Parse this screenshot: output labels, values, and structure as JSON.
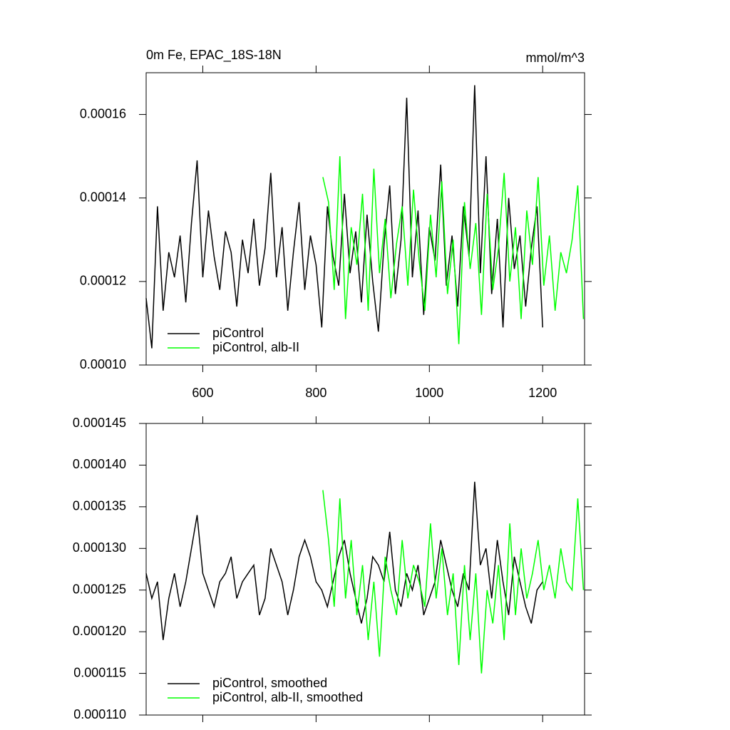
{
  "chart_data": [
    {
      "type": "line",
      "title": "0m Fe, EPAC_18S-18N",
      "units": "mmol/m^3",
      "xlim": [
        500,
        1274
      ],
      "xticks": [
        600,
        800,
        1000,
        1200
      ],
      "ylim": [
        0.0001,
        0.00017
      ],
      "yticks": [
        {
          "value": 0.0001,
          "label": "0.00010"
        },
        0.00012,
        0.00014,
        0.00016
      ],
      "legend": "lower left",
      "series": [
        {
          "name": "piControl",
          "color": "#000000",
          "x": [
            500,
            510,
            520,
            530,
            540,
            550,
            560,
            570,
            580,
            590,
            600,
            610,
            620,
            630,
            640,
            650,
            660,
            670,
            680,
            690,
            700,
            710,
            720,
            730,
            740,
            750,
            760,
            770,
            780,
            790,
            800,
            810,
            820,
            830,
            840,
            850,
            860,
            870,
            880,
            890,
            900,
            910,
            920,
            930,
            940,
            950,
            960,
            970,
            980,
            990,
            1000,
            1010,
            1020,
            1030,
            1040,
            1050,
            1060,
            1070,
            1080,
            1090,
            1100,
            1110,
            1120,
            1130,
            1140,
            1150,
            1160,
            1170,
            1180,
            1190,
            1200
          ],
          "values": [
            0.000116,
            0.000104,
            0.000138,
            0.000113,
            0.000127,
            0.000121,
            0.000131,
            0.000115,
            0.000134,
            0.000149,
            0.000121,
            0.000137,
            0.000126,
            0.000118,
            0.000132,
            0.000127,
            0.000114,
            0.00013,
            0.000122,
            0.000135,
            0.000119,
            0.000128,
            0.000146,
            0.000121,
            0.000133,
            0.000113,
            0.000127,
            0.000139,
            0.000118,
            0.000131,
            0.000124,
            0.000109,
            0.000138,
            0.000126,
            0.000119,
            0.000141,
            0.000122,
            0.000132,
            0.000115,
            0.000136,
            0.00012,
            0.000108,
            0.000129,
            0.000143,
            0.000117,
            0.00013,
            0.000164,
            0.000121,
            0.000137,
            0.000112,
            0.000133,
            0.000125,
            0.000148,
            0.000119,
            0.000131,
            0.000114,
            0.000138,
            0.000126,
            0.000167,
            0.000122,
            0.00015,
            0.000117,
            0.000135,
            0.000109,
            0.00014,
            0.000123,
            0.000131,
            0.000114,
            0.000128,
            0.000138,
            0.000109
          ]
        },
        {
          "name": "piControl, alb-II",
          "color": "#00ff00",
          "x": [
            812,
            822,
            832,
            842,
            852,
            862,
            872,
            882,
            892,
            902,
            912,
            922,
            932,
            942,
            952,
            962,
            972,
            982,
            992,
            1002,
            1012,
            1022,
            1032,
            1042,
            1052,
            1062,
            1072,
            1082,
            1092,
            1102,
            1112,
            1122,
            1132,
            1142,
            1152,
            1162,
            1172,
            1182,
            1192,
            1202,
            1212,
            1222,
            1232,
            1242,
            1252,
            1262,
            1272
          ],
          "values": [
            0.000145,
            0.000139,
            0.000118,
            0.00015,
            0.000111,
            0.000133,
            0.000124,
            0.000141,
            0.000113,
            0.000147,
            0.000122,
            0.000135,
            0.000116,
            0.000129,
            0.000138,
            0.000119,
            0.000142,
            0.000125,
            0.000113,
            0.000136,
            0.000121,
            0.000144,
            0.000117,
            0.00013,
            0.000105,
            0.000139,
            0.000123,
            0.000134,
            0.000112,
            0.000141,
            0.000118,
            0.000128,
            0.000146,
            0.00012,
            0.000133,
            0.000111,
            0.000137,
            0.000124,
            0.000145,
            0.000119,
            0.000131,
            0.000113,
            0.000127,
            0.000122,
            0.00013,
            0.000143,
            0.000111
          ]
        }
      ]
    },
    {
      "type": "line",
      "xlim": [
        500,
        1274
      ],
      "xticks": [
        600,
        800,
        1000,
        1200
      ],
      "xtick_labels": false,
      "ylim": [
        0.00011,
        0.000145
      ],
      "yticks": [
        {
          "value": 0.00011,
          "label": "0.000110"
        },
        {
          "value": 0.000115,
          "label": "0.000115"
        },
        {
          "value": 0.00012,
          "label": "0.000120"
        },
        {
          "value": 0.000125,
          "label": "0.000125"
        },
        {
          "value": 0.00013,
          "label": "0.000130"
        },
        {
          "value": 0.000135,
          "label": "0.000135"
        },
        {
          "value": 0.00014,
          "label": "0.000140"
        },
        {
          "value": 0.000145,
          "label": "0.000145"
        }
      ],
      "legend": "lower left",
      "series": [
        {
          "name": "piControl, smoothed",
          "color": "#000000",
          "x": [
            500,
            510,
            520,
            530,
            540,
            550,
            560,
            570,
            580,
            590,
            600,
            610,
            620,
            630,
            640,
            650,
            660,
            670,
            680,
            690,
            700,
            710,
            720,
            730,
            740,
            750,
            760,
            770,
            780,
            790,
            800,
            810,
            820,
            830,
            840,
            850,
            860,
            870,
            880,
            890,
            900,
            910,
            920,
            930,
            940,
            950,
            960,
            970,
            980,
            990,
            1000,
            1010,
            1020,
            1030,
            1040,
            1050,
            1060,
            1070,
            1080,
            1090,
            1100,
            1110,
            1120,
            1130,
            1140,
            1150,
            1160,
            1170,
            1180,
            1190,
            1200
          ],
          "values": [
            0.000127,
            0.000124,
            0.000126,
            0.000119,
            0.000124,
            0.000127,
            0.000123,
            0.000126,
            0.00013,
            0.000134,
            0.000127,
            0.000125,
            0.000123,
            0.000126,
            0.000127,
            0.000129,
            0.000124,
            0.000126,
            0.000127,
            0.000128,
            0.000122,
            0.000124,
            0.00013,
            0.000128,
            0.000126,
            0.000122,
            0.000125,
            0.000129,
            0.000131,
            0.000129,
            0.000126,
            0.000125,
            0.000123,
            0.000126,
            0.000129,
            0.000131,
            0.000127,
            0.000124,
            0.000121,
            0.000124,
            0.000129,
            0.000128,
            0.000126,
            0.000132,
            0.000125,
            0.000123,
            0.000127,
            0.000125,
            0.000128,
            0.000122,
            0.000124,
            0.000126,
            0.000131,
            0.000128,
            0.000125,
            0.000123,
            0.000127,
            0.000125,
            0.000138,
            0.000128,
            0.00013,
            0.000124,
            0.000131,
            0.000126,
            0.000122,
            0.000129,
            0.000126,
            0.000123,
            0.000121,
            0.000125,
            0.000126
          ]
        },
        {
          "name": "piControl, alb-II, smoothed",
          "color": "#00ff00",
          "x": [
            812,
            822,
            832,
            842,
            852,
            862,
            872,
            882,
            892,
            902,
            912,
            922,
            932,
            942,
            952,
            962,
            972,
            982,
            992,
            1002,
            1012,
            1022,
            1032,
            1042,
            1052,
            1062,
            1072,
            1082,
            1092,
            1102,
            1112,
            1122,
            1132,
            1142,
            1152,
            1162,
            1172,
            1182,
            1192,
            1202,
            1212,
            1222,
            1232,
            1242,
            1252,
            1262,
            1272
          ],
          "values": [
            0.000137,
            0.000131,
            0.000123,
            0.000136,
            0.000124,
            0.000131,
            0.000122,
            0.000128,
            0.000119,
            0.000126,
            0.000117,
            0.000129,
            0.000125,
            0.000122,
            0.000131,
            0.000124,
            0.000128,
            0.000126,
            0.000123,
            0.000133,
            0.000124,
            0.00013,
            0.000122,
            0.000127,
            0.000116,
            0.000128,
            0.000119,
            0.000127,
            0.000115,
            0.000125,
            0.000121,
            0.000128,
            0.000119,
            0.000133,
            0.000122,
            0.00013,
            0.000124,
            0.000127,
            0.000131,
            0.000125,
            0.000128,
            0.000124,
            0.00013,
            0.000126,
            0.000125,
            0.000136,
            0.000125
          ]
        }
      ]
    }
  ]
}
